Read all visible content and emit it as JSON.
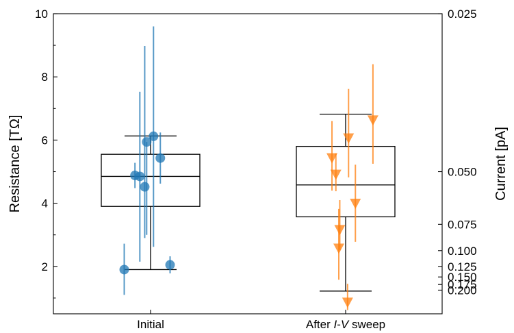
{
  "chart_data": {
    "type": "box",
    "categories": [
      "Initial",
      "After I-V sweep"
    ],
    "xlabel": "",
    "ylabel": "Resistance [TΩ]",
    "y2label": "Current [pA]",
    "ylim": [
      0.5,
      10.0
    ],
    "yticks": [
      2,
      4,
      6,
      8,
      10
    ],
    "y2ticks": [
      "0.025",
      "0.050",
      "0.075",
      "0.100",
      "0.125",
      "0.150",
      "0.175",
      "0.200"
    ],
    "y2tick_values": [
      0.025,
      0.05,
      0.075,
      0.1,
      0.125,
      0.15,
      0.175,
      0.2
    ],
    "grid": false,
    "colors": {
      "initial": "#1f77b4",
      "after": "#ff7f0e",
      "box": "#000000"
    },
    "boxes": [
      {
        "category": "Initial",
        "whisker_low": 1.9,
        "q1": 3.9,
        "median": 4.85,
        "q3": 5.55,
        "whisker_high": 6.13
      },
      {
        "category": "After I-V sweep",
        "whisker_low": 1.22,
        "q1": 3.57,
        "median": 4.58,
        "q3": 5.8,
        "whisker_high": 6.82
      }
    ],
    "series": [
      {
        "category": "Initial",
        "marker": "circle",
        "points": [
          {
            "x": -0.27,
            "y": 1.9,
            "err_low": 1.1,
            "err_high": 2.72
          },
          {
            "x": -0.16,
            "y": 4.88,
            "err_low": 4.48,
            "err_high": 5.28
          },
          {
            "x": -0.11,
            "y": 4.85,
            "err_low": 2.15,
            "err_high": 7.53
          },
          {
            "x": -0.06,
            "y": 4.52,
            "err_low": 2.9,
            "err_high": 8.98
          },
          {
            "x": -0.04,
            "y": 5.94,
            "err_low": 3.0,
            "err_high": 5.94
          },
          {
            "x": 0.03,
            "y": 6.12,
            "err_low": 2.62,
            "err_high": 9.6
          },
          {
            "x": 0.1,
            "y": 5.43,
            "err_low": 4.62,
            "err_high": 6.24
          },
          {
            "x": 0.2,
            "y": 2.05,
            "err_low": 1.78,
            "err_high": 2.32
          }
        ]
      },
      {
        "category": "After I-V sweep",
        "marker": "triangle-down",
        "points": [
          {
            "x": -0.14,
            "y": 5.42,
            "err_low": 4.4,
            "err_high": 6.6
          },
          {
            "x": -0.1,
            "y": 4.9,
            "err_low": 4.38,
            "err_high": 5.58
          },
          {
            "x": -0.06,
            "y": 3.15,
            "err_low": 2.52,
            "err_high": 4.1
          },
          {
            "x": -0.07,
            "y": 2.56,
            "err_low": 1.58,
            "err_high": 3.82
          },
          {
            "x": 0.03,
            "y": 6.05,
            "err_low": 4.82,
            "err_high": 7.62
          },
          {
            "x": 0.1,
            "y": 3.98,
            "err_low": 2.78,
            "err_high": 5.22
          },
          {
            "x": 0.02,
            "y": 0.85,
            "err_low": 0.62,
            "err_high": 1.45
          },
          {
            "x": 0.28,
            "y": 6.62,
            "err_low": 5.25,
            "err_high": 8.4
          }
        ]
      }
    ]
  },
  "labels": {
    "ylabel": "Resistance [TΩ]",
    "y2label": "Current [pA]",
    "xticks": [
      "Initial",
      "After I-V sweep"
    ]
  }
}
